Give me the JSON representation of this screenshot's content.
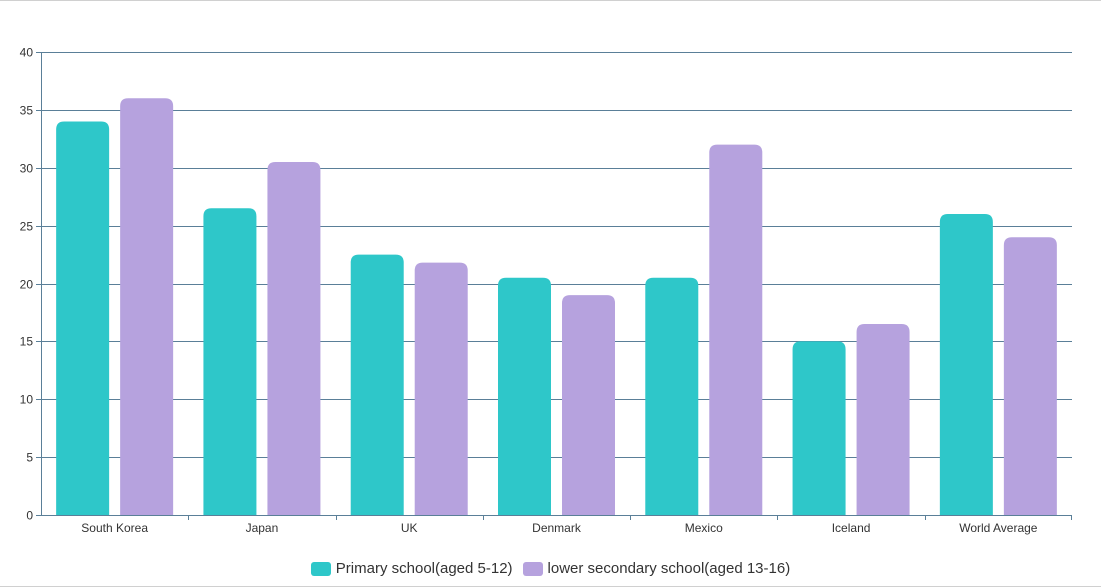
{
  "colors": {
    "series_1": "#2ec7c9",
    "series_2": "#b6a2de",
    "grid": "#5a7f98",
    "axis": "#5a7f98",
    "text": "#333333"
  },
  "legend": {
    "items": [
      {
        "label": "Primary school(aged 5-12)",
        "color": "#2ec7c9"
      },
      {
        "label": "lower secondary school(aged 13-16)",
        "color": "#b6a2de"
      }
    ]
  },
  "chart_data": {
    "type": "bar",
    "title": "",
    "xlabel": "",
    "ylabel": "",
    "categories": [
      "South Korea",
      "Japan",
      "UK",
      "Denmark",
      "Mexico",
      "Iceland",
      "World Average"
    ],
    "series": [
      {
        "name": "Primary school(aged 5-12)",
        "values": [
          34,
          26.5,
          22.5,
          20.5,
          20.5,
          15,
          26
        ]
      },
      {
        "name": "lower secondary school(aged 13-16)",
        "values": [
          36,
          30.5,
          21.8,
          19,
          32,
          16.5,
          24
        ]
      }
    ],
    "ylim": [
      0,
      40
    ],
    "yticks": [
      0,
      5,
      10,
      15,
      20,
      25,
      30,
      35,
      40
    ],
    "grid": true,
    "legend_position": "bottom-center"
  }
}
